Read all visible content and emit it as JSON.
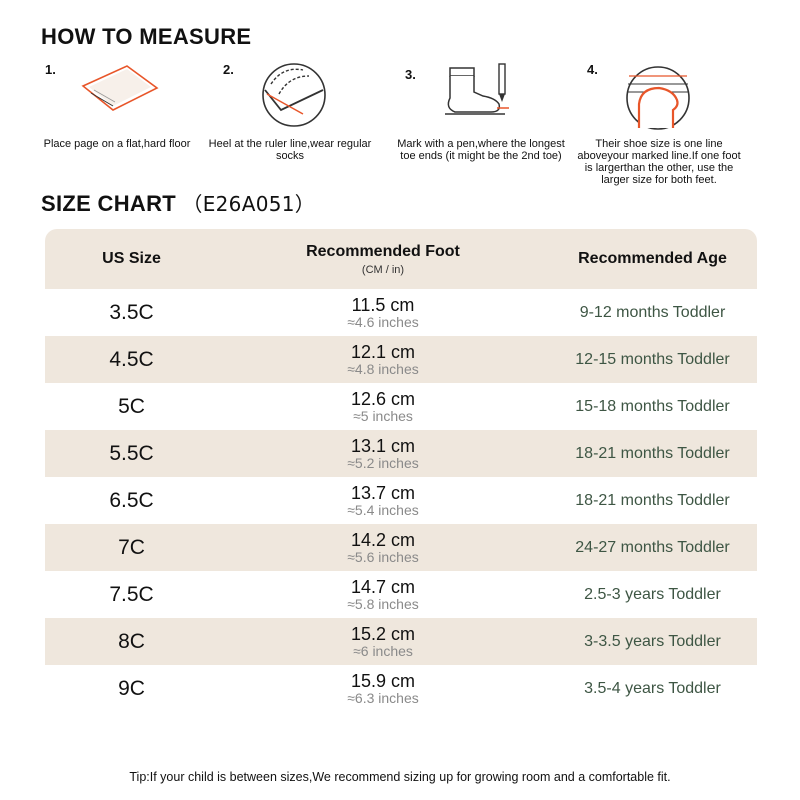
{
  "measure": {
    "title": "HOW TO MEASURE",
    "steps": [
      {
        "num": "1.",
        "icon": "page-on-floor-icon",
        "text": "Place page on a flat,hard floor"
      },
      {
        "num": "2.",
        "icon": "heel-at-ruler-icon",
        "text": "Heel at the ruler line,wear regular socks"
      },
      {
        "num": "3.",
        "icon": "mark-toe-with-pen-icon",
        "text": "Mark with a pen,where the longest toe ends (it might be the 2nd toe)"
      },
      {
        "num": "4.",
        "icon": "shoe-size-line-icon",
        "text": "Their shoe size is one line aboveyour marked line.If one foot is largerthan the other, use the larger size for both feet."
      }
    ]
  },
  "chart": {
    "title": "SIZE CHART",
    "code": "（E26A051）",
    "headers": {
      "size": "US Size",
      "foot": "Recommended Foot",
      "foot_sub": "(CM / in)",
      "age": "Recommended Age"
    },
    "rows": [
      {
        "size": "3.5C",
        "cm": "11.5 cm",
        "inch": "≈4.6 inches",
        "age": "9-12 months Toddler"
      },
      {
        "size": "4.5C",
        "cm": "12.1 cm",
        "inch": "≈4.8 inches",
        "age": "12-15 months Toddler"
      },
      {
        "size": "5C",
        "cm": "12.6 cm",
        "inch": "≈5 inches",
        "age": "15-18 months Toddler"
      },
      {
        "size": "5.5C",
        "cm": "13.1 cm",
        "inch": "≈5.2 inches",
        "age": "18-21 months Toddler"
      },
      {
        "size": "6.5C",
        "cm": "13.7 cm",
        "inch": "≈5.4 inches",
        "age": "18-21 months Toddler"
      },
      {
        "size": "7C",
        "cm": "14.2 cm",
        "inch": "≈5.6 inches",
        "age": "24-27 months Toddler"
      },
      {
        "size": "7.5C",
        "cm": "14.7 cm",
        "inch": "≈5.8 inches",
        "age": "2.5-3 years Toddler"
      },
      {
        "size": "8C",
        "cm": "15.2 cm",
        "inch": "≈6 inches",
        "age": "3-3.5 years Toddler"
      },
      {
        "size": "9C",
        "cm": "15.9 cm",
        "inch": "≈6.3 inches",
        "age": "3.5-4 years Toddler"
      }
    ]
  },
  "tip": "Tip:If your child is between sizes,We recommend sizing up for growing room and a comfortable fit.",
  "colors": {
    "accent": "#e8562a",
    "header_bg": "#efe7dd",
    "age_text": "#3e5644"
  }
}
